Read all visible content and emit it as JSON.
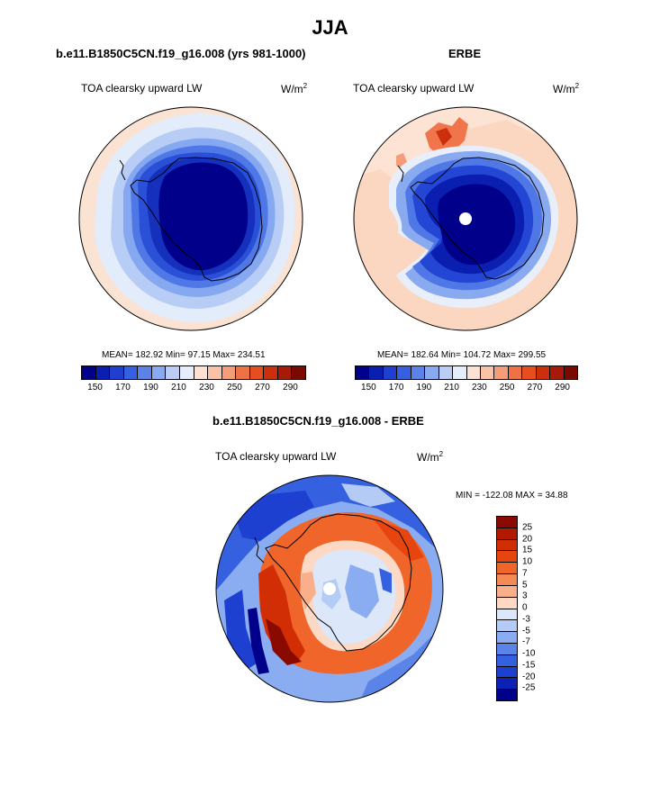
{
  "title": "JJA",
  "panels": [
    {
      "title": "b.e11.B1850C5CN.f19_g16.008 (yrs 981-1000)",
      "variable": "TOA clearsky upward LW",
      "units_base": "W/m",
      "units_exp": "2",
      "stats": "MEAN= 182.92  Min=  97.15  Max= 234.51"
    },
    {
      "title": "ERBE",
      "variable": "TOA clearsky upward LW",
      "units_base": "W/m",
      "units_exp": "2",
      "stats": "MEAN= 182.64  Min= 104.72  Max= 299.55"
    },
    {
      "title": "b.e11.B1850C5CN.f19_g16.008 - ERBE",
      "variable": "TOA clearsky upward LW",
      "units_base": "W/m",
      "units_exp": "2",
      "stats": "MIN = -122.08 MAX =  34.88"
    }
  ],
  "colorbar_abs": {
    "labels": [
      "150",
      "170",
      "190",
      "210",
      "230",
      "250",
      "270",
      "290"
    ],
    "colors": [
      "#00008b",
      "#0a1fb0",
      "#1e3fd0",
      "#3560e0",
      "#5a82e8",
      "#8aaaf0",
      "#bccdf5",
      "#e6eefb",
      "#fde2d2",
      "#fac3a6",
      "#f59c78",
      "#ef7146",
      "#e64d1f",
      "#cc2f0c",
      "#a71a05",
      "#7a0a00"
    ]
  },
  "colorbar_diff": {
    "labels": [
      "25",
      "20",
      "15",
      "10",
      "7",
      "5",
      "3",
      "0",
      "-3",
      "-5",
      "-7",
      "-10",
      "-15",
      "-20",
      "-25"
    ],
    "colors": [
      "#8b0a00",
      "#b21a00",
      "#d12e05",
      "#e6450f",
      "#f0652a",
      "#f58a55",
      "#f9b08a",
      "#fcd9c4",
      "#dce7fa",
      "#b4cbf5",
      "#8aacf0",
      "#5a84e8",
      "#3561e0",
      "#1d40d0",
      "#0d22b4",
      "#00008b"
    ]
  }
}
